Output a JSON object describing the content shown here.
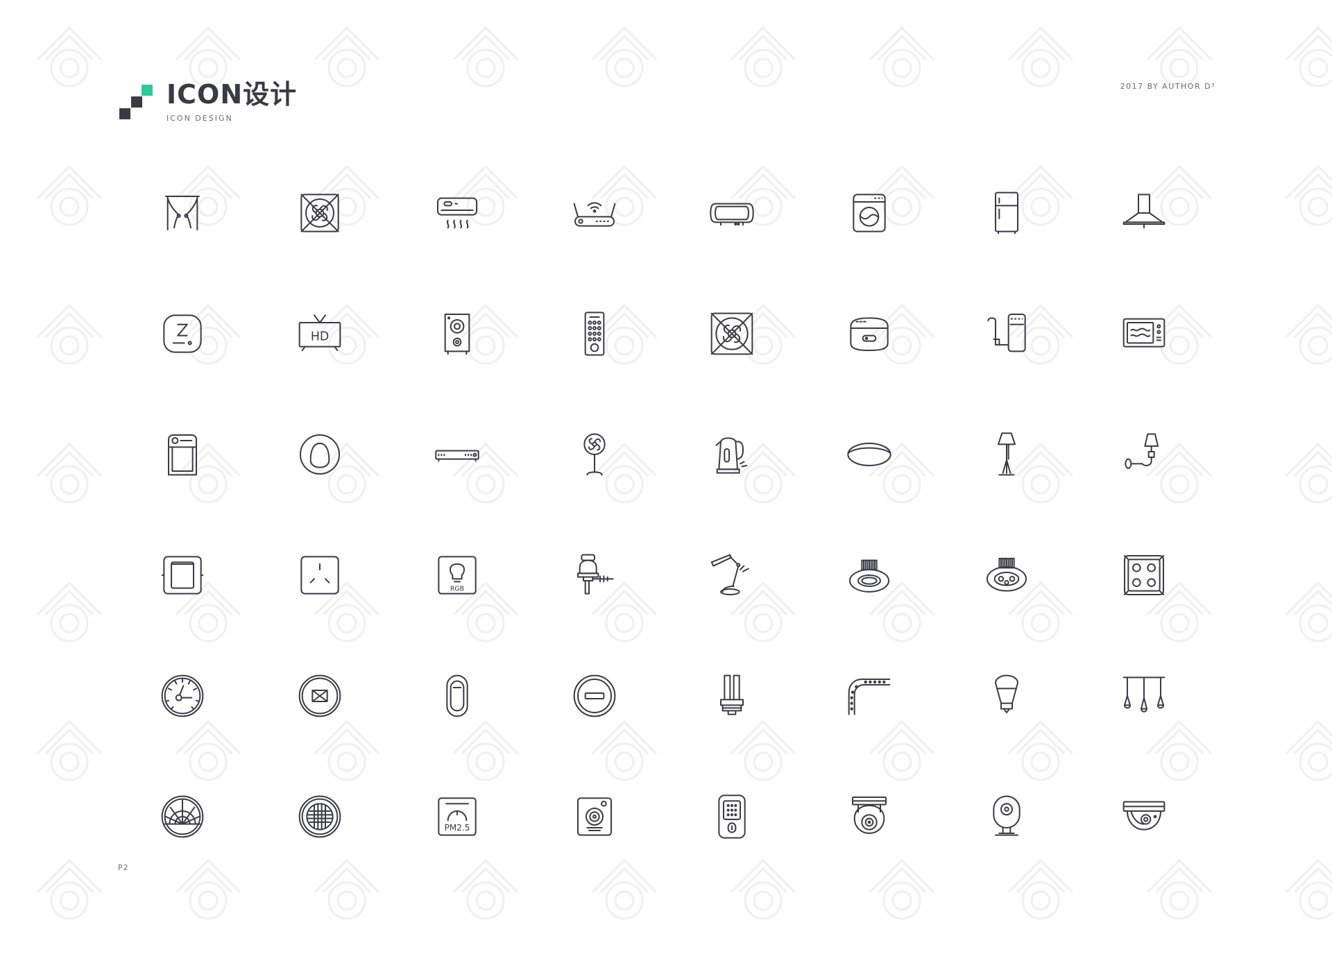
{
  "header": {
    "title": "ICON设计",
    "subtitle": "ICON DESIGN",
    "credit": "2017 BY AUTHOR D³"
  },
  "footer": {
    "page": "P2"
  },
  "colors": {
    "accent": "#2dcb9b",
    "dark": "#3a3a45",
    "watermark": "#f2f2f4"
  },
  "icons": [
    {
      "name": "curtain-icon"
    },
    {
      "name": "fan-grille-icon"
    },
    {
      "name": "air-conditioner-icon"
    },
    {
      "name": "wifi-router-icon"
    },
    {
      "name": "projector-icon"
    },
    {
      "name": "washing-machine-icon"
    },
    {
      "name": "refrigerator-icon"
    },
    {
      "name": "range-hood-icon"
    },
    {
      "name": "smart-hub-icon"
    },
    {
      "name": "hd-tv-icon",
      "label": "HD"
    },
    {
      "name": "speaker-icon"
    },
    {
      "name": "remote-control-icon"
    },
    {
      "name": "exhaust-fan-icon"
    },
    {
      "name": "rice-cooker-icon"
    },
    {
      "name": "water-purifier-icon"
    },
    {
      "name": "microwave-icon"
    },
    {
      "name": "dehumidifier-icon"
    },
    {
      "name": "robot-vacuum-icon"
    },
    {
      "name": "set-top-box-icon"
    },
    {
      "name": "standing-fan-icon"
    },
    {
      "name": "electric-kettle-icon"
    },
    {
      "name": "ceiling-light-icon"
    },
    {
      "name": "floor-lamp-icon"
    },
    {
      "name": "wall-lamp-icon"
    },
    {
      "name": "wall-switch-icon"
    },
    {
      "name": "power-socket-icon"
    },
    {
      "name": "rgb-light-icon",
      "label": "RGB"
    },
    {
      "name": "smart-plug-icon"
    },
    {
      "name": "desk-lamp-icon"
    },
    {
      "name": "downlight-icon"
    },
    {
      "name": "spotlight-icon"
    },
    {
      "name": "multi-socket-icon"
    },
    {
      "name": "thermostat-dial-icon"
    },
    {
      "name": "door-sensor-icon"
    },
    {
      "name": "motion-sensor-icon"
    },
    {
      "name": "wireless-button-icon"
    },
    {
      "name": "energy-saving-bulb-icon"
    },
    {
      "name": "light-strip-icon"
    },
    {
      "name": "smart-bulb-icon"
    },
    {
      "name": "pendant-lights-icon"
    },
    {
      "name": "smoke-detector-icon"
    },
    {
      "name": "air-purifier-icon"
    },
    {
      "name": "pm25-monitor-icon",
      "label": "PM2.5"
    },
    {
      "name": "smart-speaker-icon"
    },
    {
      "name": "smart-lock-icon"
    },
    {
      "name": "security-camera-icon"
    },
    {
      "name": "webcam-icon"
    },
    {
      "name": "dome-camera-icon"
    }
  ]
}
